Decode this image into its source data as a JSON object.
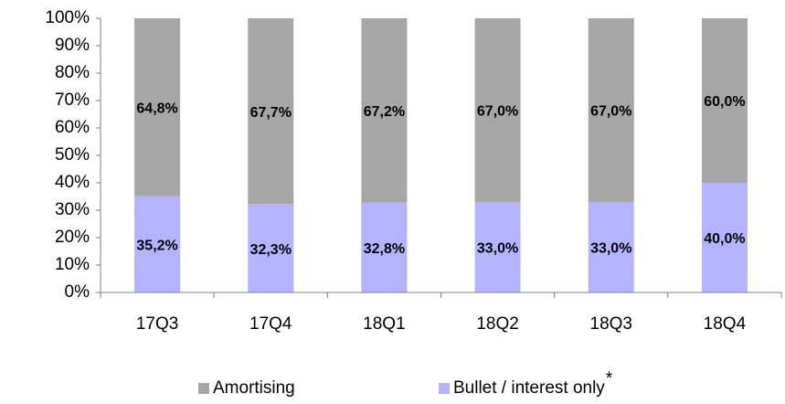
{
  "chart_data": {
    "type": "stacked_bar",
    "categories": [
      "17Q3",
      "17Q4",
      "18Q1",
      "18Q2",
      "18Q3",
      "18Q4"
    ],
    "series": [
      {
        "name": "Amortising",
        "color": "#a6a6a6",
        "values": [
          64.8,
          67.7,
          67.2,
          67.0,
          67.0,
          60.0
        ],
        "value_labels": [
          "64,8%",
          "67,7%",
          "67,2%",
          "67,0%",
          "67,0%",
          "60,0%"
        ]
      },
      {
        "name": "Bullet / interest only",
        "color": "#b3b3ff",
        "values": [
          35.2,
          32.3,
          32.8,
          33.0,
          33.0,
          40.0
        ],
        "value_labels": [
          "35,2%",
          "32,3%",
          "32,8%",
          "33,0%",
          "33,0%",
          "40,0%"
        ]
      }
    ],
    "legend_marker": "*",
    "ylim": [
      0,
      100
    ],
    "yticks": [
      {
        "value": 0,
        "label": "0%"
      },
      {
        "value": 10,
        "label": "10%"
      },
      {
        "value": 20,
        "label": "20%"
      },
      {
        "value": 30,
        "label": "30%"
      },
      {
        "value": 40,
        "label": "40%"
      },
      {
        "value": 50,
        "label": "50%"
      },
      {
        "value": 60,
        "label": "60%"
      },
      {
        "value": 70,
        "label": "70%"
      },
      {
        "value": 80,
        "label": "80%"
      },
      {
        "value": 90,
        "label": "90%"
      },
      {
        "value": 100,
        "label": "100%"
      }
    ],
    "legend": "bottom"
  }
}
